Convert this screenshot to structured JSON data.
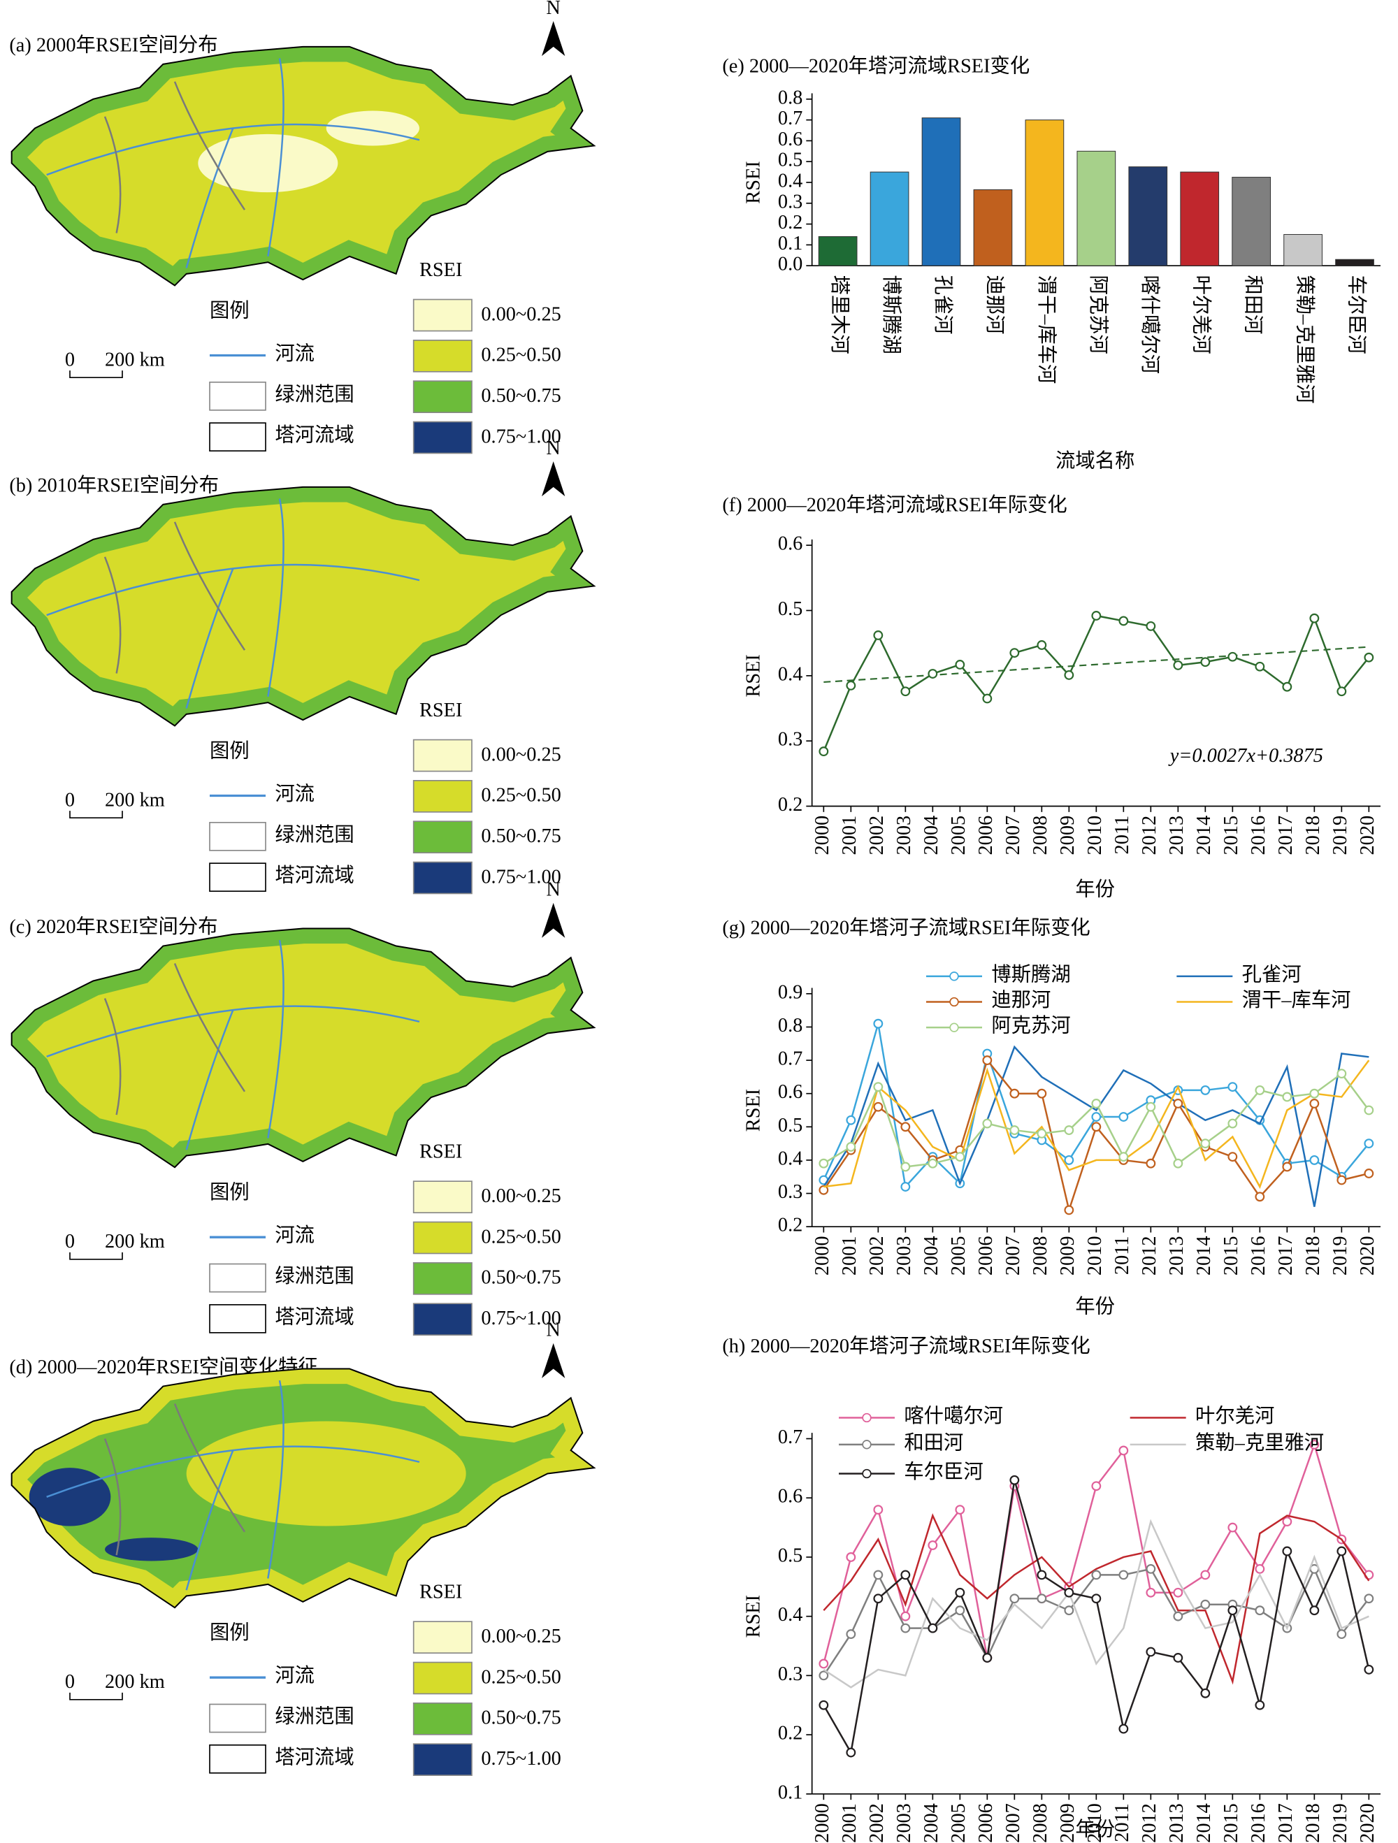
{
  "maps": [
    {
      "title": "(a) 2000年RSEI空间分布"
    },
    {
      "title": "(b)  2010年RSEI空间分布"
    },
    {
      "title": "(c) 2020年RSEI空间分布"
    },
    {
      "title": "(d) 2000—2020年RSEI空间变化特征"
    }
  ],
  "map_legend": {
    "north": "N",
    "scale": [
      "0",
      "200 km"
    ],
    "title": "图例",
    "items": [
      "河流",
      "绿洲范围",
      "塔河流域"
    ],
    "rsei_title": "RSEI",
    "classes": [
      {
        "label": "0.00~0.25",
        "color": "#fafac8"
      },
      {
        "label": "0.25~0.50",
        "color": "#d6dc2a"
      },
      {
        "label": "0.50~0.75",
        "color": "#6cbc3a"
      },
      {
        "label": "0.75~1.00",
        "color": "#1a3a7a"
      }
    ]
  },
  "chart_data": [
    {
      "type": "bar",
      "title": "(e) 2000—2020年塔河流域RSEI变化",
      "xlabel": "流域名称",
      "ylabel": "RSEI",
      "categories": [
        "塔里木河",
        "博斯腾湖",
        "孔雀河",
        "迪那河",
        "渭干–库车河",
        "阿克苏河",
        "喀什噶尔河",
        "叶尔羌河",
        "和田河",
        "策勒–克里雅河",
        "车尔臣河"
      ],
      "values": [
        0.14,
        0.45,
        0.71,
        0.365,
        0.7,
        0.55,
        0.475,
        0.45,
        0.425,
        0.15,
        0.03
      ],
      "colors": [
        "#1e6b35",
        "#3aa6dc",
        "#1f6fb8",
        "#c0601e",
        "#f4b61e",
        "#a6d08a",
        "#243c6c",
        "#c0272d",
        "#7f7f7f",
        "#c8c8c8",
        "#231f20"
      ],
      "ylim": [
        0,
        0.8
      ],
      "yticks": [
        {
          "value": 0,
          "label": "0.0"
        },
        0.1,
        0.2,
        0.3,
        0.4,
        0.5,
        0.6,
        0.7,
        0.8
      ]
    },
    {
      "type": "line",
      "title": "(f) 2000—2020年塔河流域RSEI年际变化",
      "xlabel": "年份",
      "ylabel": "RSEI",
      "categories": [
        "2000",
        "2001",
        "2002",
        "2003",
        "2004",
        "2005",
        "2006",
        "2007",
        "2008",
        "2009",
        "2010",
        "2011",
        "2012",
        "2013",
        "2014",
        "2015",
        "2016",
        "2017",
        "2018",
        "2019",
        "2020"
      ],
      "series": [
        {
          "name": null,
          "color": "#2d6a2d",
          "marker": true,
          "values": [
            0.284,
            0.385,
            0.462,
            0.376,
            0.403,
            0.417,
            0.365,
            0.435,
            0.447,
            0.401,
            0.492,
            0.484,
            0.476,
            0.416,
            0.421,
            0.429,
            0.414,
            0.383,
            0.488,
            0.376,
            0.428
          ]
        }
      ],
      "trend": {
        "label": "y=0.0027x+0.3875",
        "slope": 0.0027,
        "intercept": 0.3875,
        "color": "#2d6a2d"
      },
      "ylim": [
        0.2,
        0.6
      ],
      "yticks": [
        0.2,
        0.3,
        0.4,
        0.5,
        0.6
      ]
    },
    {
      "type": "line",
      "title": "(g) 2000—2020年塔河子流域RSEI年际变化",
      "xlabel": "年份",
      "ylabel": "RSEI",
      "categories": [
        "2000",
        "2001",
        "2002",
        "2003",
        "2004",
        "2005",
        "2006",
        "2007",
        "2008",
        "2009",
        "2010",
        "2011",
        "2012",
        "2013",
        "2014",
        "2015",
        "2016",
        "2017",
        "2018",
        "2019",
        "2020"
      ],
      "series": [
        {
          "name": "博斯腾湖",
          "color": "#3aa6dc",
          "marker": true,
          "values": [
            0.34,
            0.52,
            0.81,
            0.32,
            0.41,
            0.33,
            0.72,
            0.48,
            0.46,
            0.4,
            0.53,
            0.53,
            0.58,
            0.61,
            0.61,
            0.62,
            0.52,
            0.39,
            0.4,
            0.35,
            0.45
          ]
        },
        {
          "name": "孔雀河",
          "color": "#1f6fb8",
          "marker": false,
          "values": [
            0.32,
            0.45,
            0.69,
            0.52,
            0.55,
            0.33,
            0.52,
            0.74,
            0.65,
            0.6,
            0.55,
            0.67,
            0.63,
            0.57,
            0.52,
            0.55,
            0.51,
            0.68,
            0.26,
            0.72,
            0.71
          ]
        },
        {
          "name": "迪那河",
          "color": "#c0601e",
          "marker": true,
          "values": [
            0.31,
            0.43,
            0.56,
            0.5,
            0.4,
            0.43,
            0.7,
            0.6,
            0.6,
            0.25,
            0.5,
            0.4,
            0.39,
            0.57,
            0.44,
            0.41,
            0.29,
            0.38,
            0.57,
            0.34,
            0.36
          ]
        },
        {
          "name": "渭干–库车河",
          "color": "#f4b61e",
          "marker": false,
          "values": [
            0.32,
            0.33,
            0.62,
            0.55,
            0.44,
            0.4,
            0.67,
            0.42,
            0.5,
            0.37,
            0.4,
            0.4,
            0.46,
            0.62,
            0.4,
            0.47,
            0.32,
            0.55,
            0.6,
            0.59,
            0.7
          ]
        },
        {
          "name": "阿克苏河",
          "color": "#a6d08a",
          "marker": true,
          "values": [
            0.39,
            0.44,
            0.62,
            0.38,
            0.39,
            0.41,
            0.51,
            0.49,
            0.48,
            0.49,
            0.57,
            0.41,
            0.56,
            0.39,
            0.45,
            0.51,
            0.61,
            0.59,
            0.6,
            0.66,
            0.55
          ]
        }
      ],
      "ylim": [
        0.2,
        0.9
      ],
      "yticks": [
        0.2,
        0.3,
        0.4,
        0.5,
        0.6,
        0.7,
        0.8,
        0.9
      ]
    },
    {
      "type": "line",
      "title": "(h) 2000—2020年塔河子流域RSEI年际变化",
      "xlabel": "年份",
      "ylabel": "RSEI",
      "categories": [
        "2000",
        "2001",
        "2002",
        "2003",
        "2004",
        "2005",
        "2006",
        "2007",
        "2008",
        "2009",
        "2010",
        "2011",
        "2012",
        "2013",
        "2014",
        "2015",
        "2016",
        "2017",
        "2018",
        "2019",
        "2020"
      ],
      "series": [
        {
          "name": "喀什噶尔河",
          "color": "#e0609a",
          "marker": true,
          "values": [
            0.32,
            0.5,
            0.58,
            0.4,
            0.52,
            0.58,
            0.33,
            0.62,
            0.43,
            0.45,
            0.62,
            0.68,
            0.44,
            0.44,
            0.47,
            0.55,
            0.48,
            0.56,
            0.69,
            0.53,
            0.47
          ]
        },
        {
          "name": "叶尔羌河",
          "color": "#c0272d",
          "marker": false,
          "values": [
            0.41,
            0.46,
            0.53,
            0.42,
            0.57,
            0.47,
            0.43,
            0.47,
            0.5,
            0.45,
            0.48,
            0.5,
            0.51,
            0.41,
            0.41,
            0.29,
            0.54,
            0.57,
            0.56,
            0.53,
            0.46
          ]
        },
        {
          "name": "和田河",
          "color": "#7f7f7f",
          "marker": true,
          "values": [
            0.3,
            0.37,
            0.47,
            0.38,
            0.38,
            0.41,
            0.33,
            0.43,
            0.43,
            0.41,
            0.47,
            0.47,
            0.48,
            0.4,
            0.42,
            0.42,
            0.41,
            0.38,
            0.48,
            0.37,
            0.43
          ]
        },
        {
          "name": "策勒–克里雅河",
          "color": "#c8c8c8",
          "marker": false,
          "values": [
            0.31,
            0.28,
            0.31,
            0.3,
            0.43,
            0.38,
            0.36,
            0.42,
            0.38,
            0.44,
            0.32,
            0.38,
            0.56,
            0.46,
            0.38,
            0.39,
            0.47,
            0.38,
            0.5,
            0.38,
            0.4
          ]
        },
        {
          "name": "车尔臣河",
          "color": "#231f20",
          "marker": true,
          "values": [
            0.25,
            0.17,
            0.43,
            0.47,
            0.38,
            0.44,
            0.33,
            0.63,
            0.47,
            0.44,
            0.43,
            0.21,
            0.34,
            0.33,
            0.27,
            0.41,
            0.25,
            0.51,
            0.41,
            0.51,
            0.31
          ]
        }
      ],
      "ylim": [
        0.1,
        0.7
      ],
      "yticks": [
        0.1,
        0.2,
        0.3,
        0.4,
        0.5,
        0.6,
        0.7
      ]
    }
  ]
}
